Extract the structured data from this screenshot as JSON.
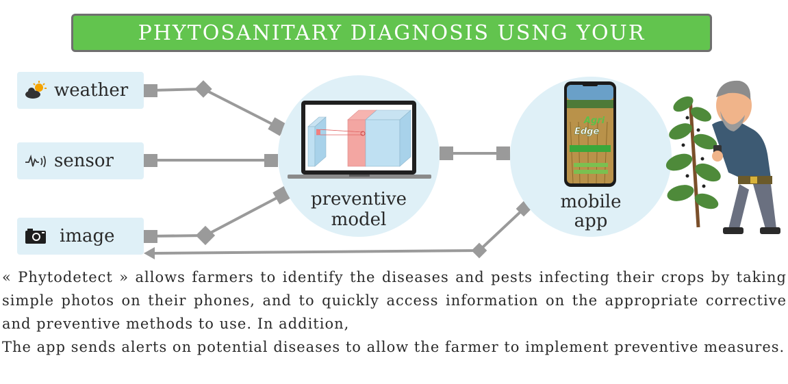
{
  "banner": {
    "title": "PHYTOSANITARY DIAGNOSIS USNG YOUR"
  },
  "inputs": [
    {
      "label": "weather",
      "icon": "weather-icon"
    },
    {
      "label": "sensor",
      "icon": "sensor-icon"
    },
    {
      "label": "image",
      "icon": "camera-icon"
    }
  ],
  "model": {
    "label_line1": "preventive",
    "label_line2": "model"
  },
  "app": {
    "label_line1": "mobile",
    "label_line2": "app",
    "brand_line1": "Agri",
    "brand_line2": "Edge"
  },
  "description": {
    "paragraph1": "« Phytodetect » allows farmers to identify the diseases and pests infecting their crops by taking simple photos on their phones, and to quickly access information on the appropriate corrective and preventive methods to use. In addition,",
    "paragraph2": "The app sends alerts on potential diseases to allow the farmer to implement preventive measures."
  },
  "colors": {
    "banner": "#62c44e",
    "box": "#dff0f7",
    "connector": "#999999"
  }
}
